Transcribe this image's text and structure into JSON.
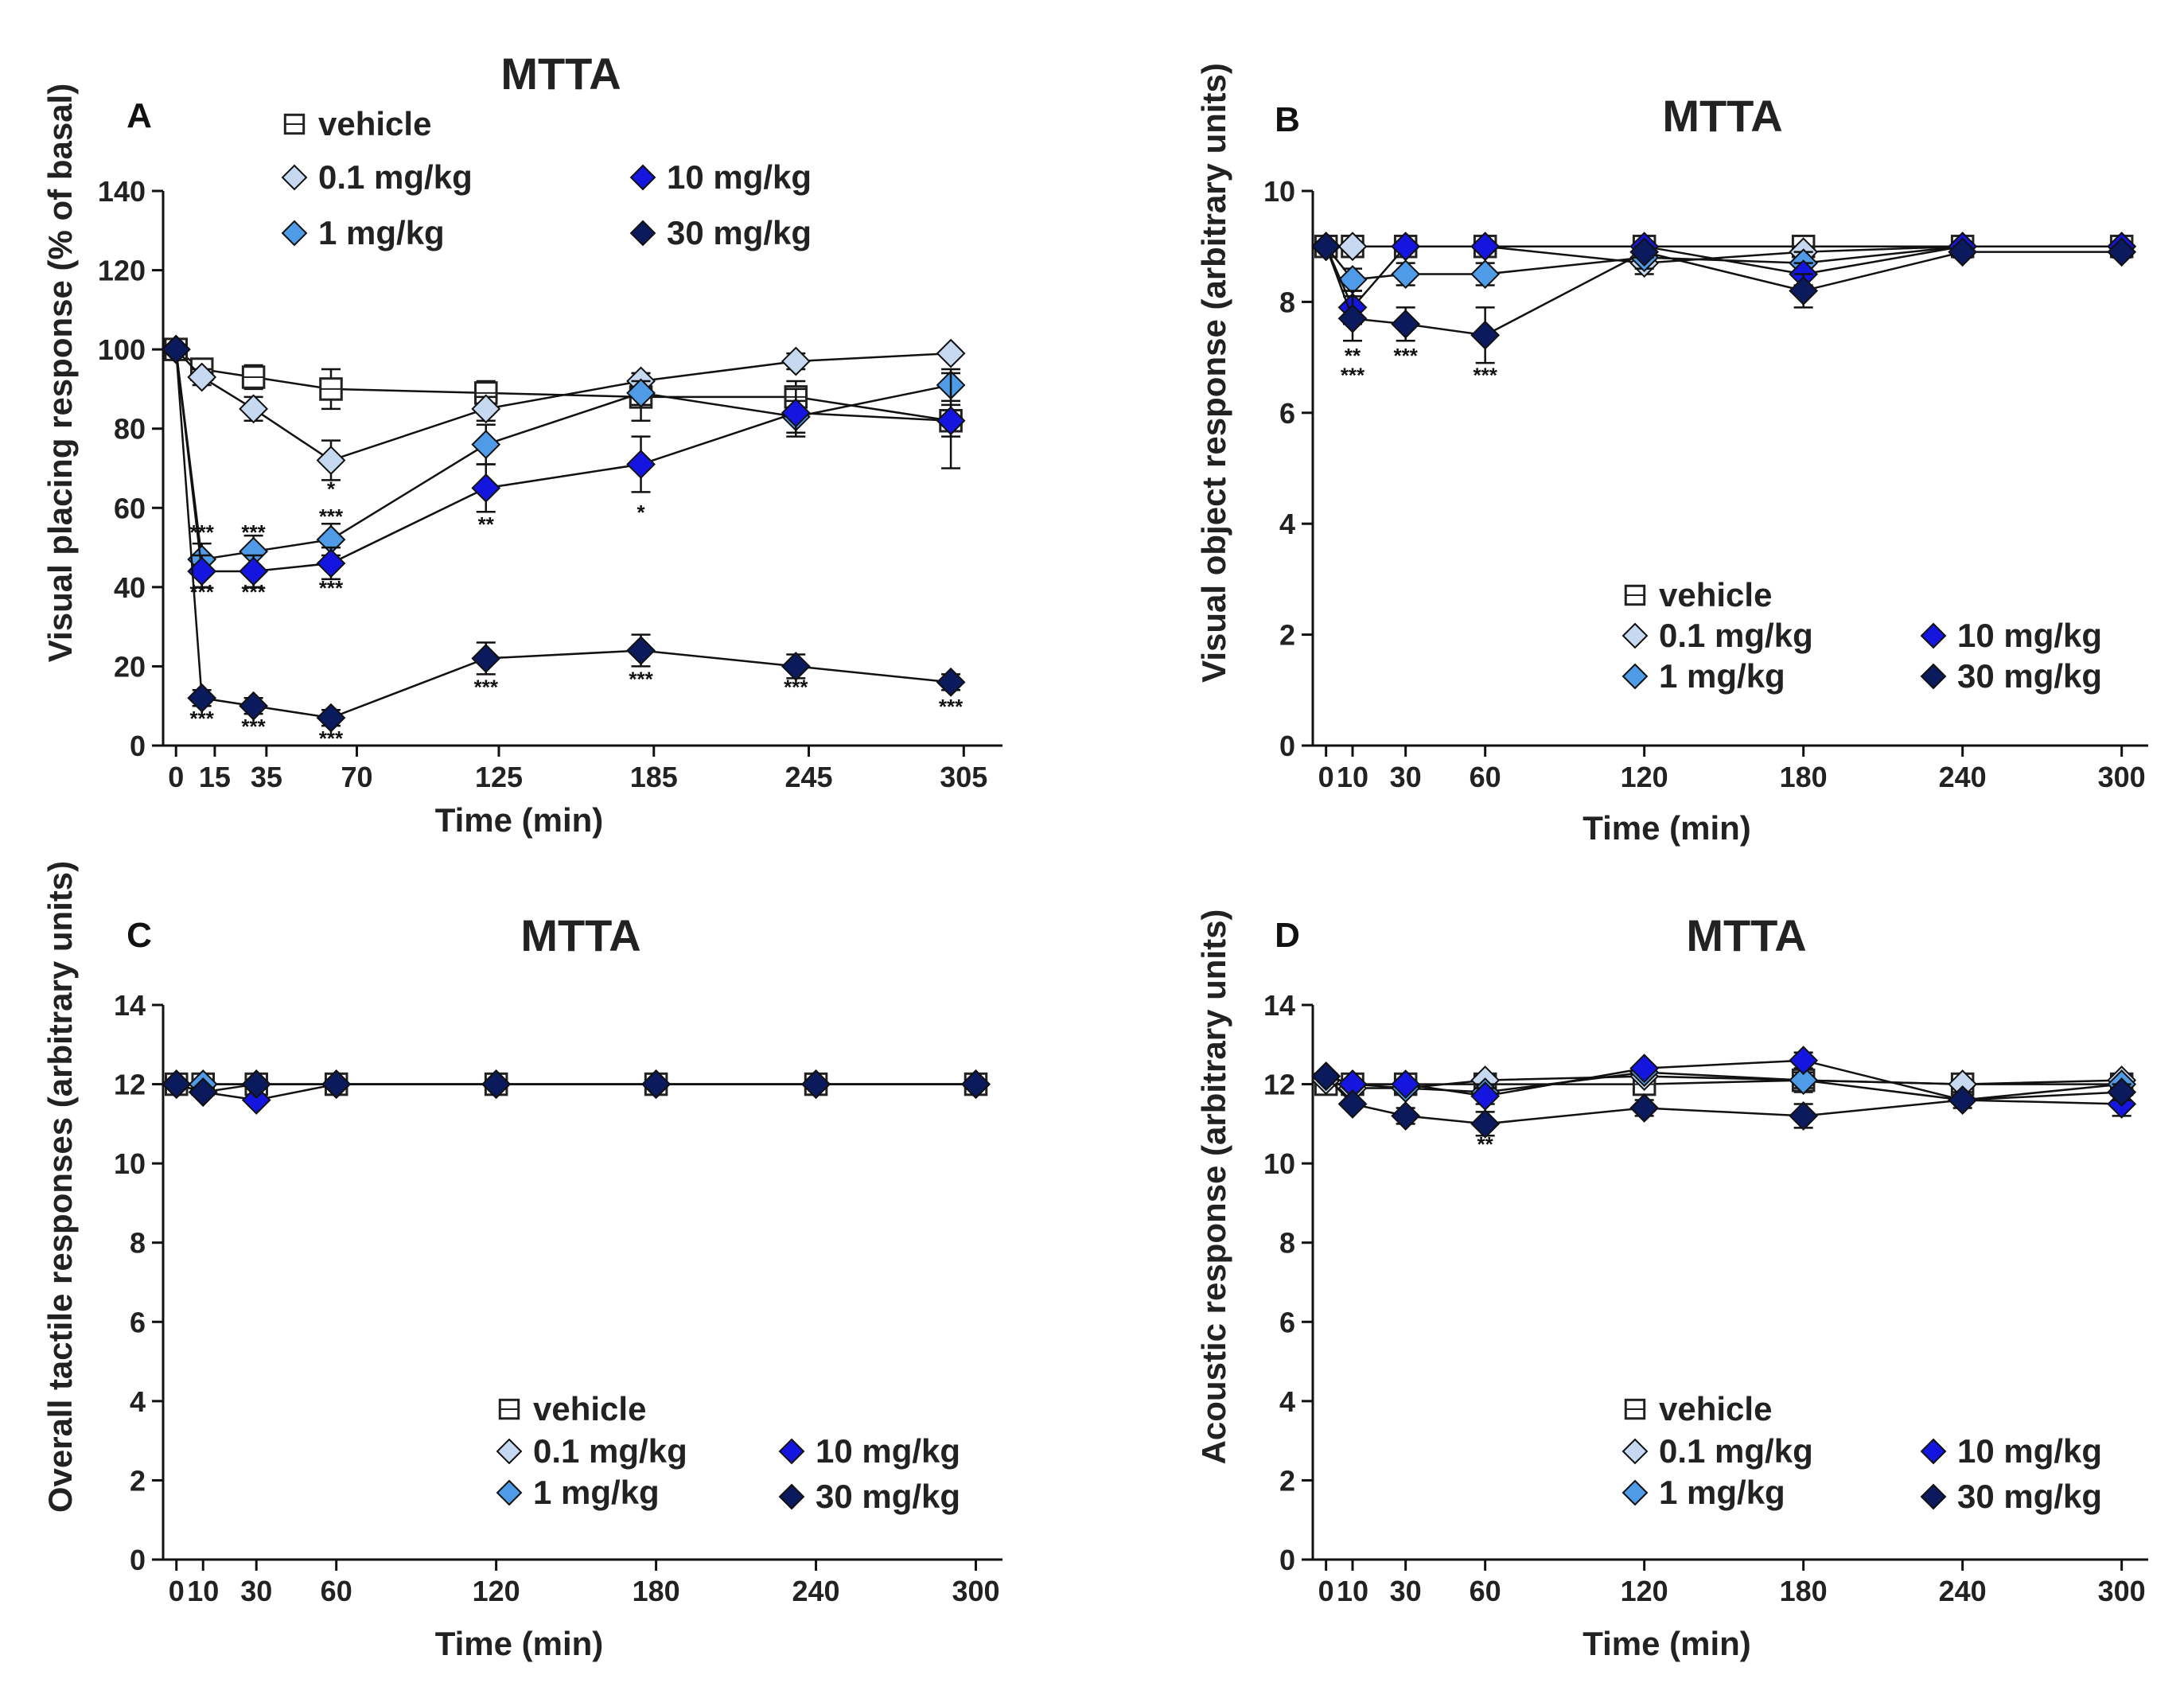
{
  "series_styles": {
    "vehicle": {
      "marker": "square",
      "fill": "#ffffff"
    },
    "0.1 mg/kg": {
      "marker": "diamond",
      "fill": "#c6d9f1"
    },
    "1 mg/kg": {
      "marker": "diamond",
      "fill": "#4f9be8"
    },
    "10 mg/kg": {
      "marker": "diamond",
      "fill": "#1515e0"
    },
    "30 mg/kg": {
      "marker": "diamond",
      "fill": "#0a1a5c"
    }
  },
  "chart_data": [
    {
      "panel": "A",
      "type": "line",
      "title": "MTTA",
      "xlabel": "Time (min)",
      "ylabel": "Visual placing response (%  of basal)",
      "xlim": [
        -5,
        320
      ],
      "ylim": [
        0,
        140
      ],
      "xticks": [
        0,
        15,
        35,
        70,
        125,
        185,
        245,
        305
      ],
      "yticks": [
        0,
        20,
        40,
        60,
        80,
        100,
        120,
        140
      ],
      "legend": [
        "vehicle",
        "0.1 mg/kg",
        "1 mg/kg",
        "10 mg/kg",
        "30 mg/kg"
      ],
      "x": [
        0,
        10,
        30,
        60,
        120,
        180,
        240,
        300
      ],
      "series": [
        {
          "name": "vehicle",
          "values": [
            100,
            95,
            93,
            90,
            89,
            88,
            88,
            82
          ],
          "errors": [
            0,
            2,
            3,
            5,
            3,
            6,
            4,
            4
          ]
        },
        {
          "name": "0.1 mg/kg",
          "values": [
            100,
            93,
            85,
            72,
            85,
            92,
            97,
            99
          ],
          "errors": [
            0,
            2,
            3,
            5,
            3,
            2,
            2,
            1
          ]
        },
        {
          "name": "1 mg/kg",
          "values": [
            100,
            47,
            49,
            52,
            76,
            89,
            83,
            91
          ],
          "errors": [
            0,
            4,
            4,
            4,
            5,
            3,
            4,
            4
          ]
        },
        {
          "name": "10 mg/kg",
          "values": [
            100,
            44,
            44,
            46,
            65,
            71,
            84,
            82
          ],
          "errors": [
            0,
            4,
            4,
            4,
            6,
            7,
            6,
            12
          ]
        },
        {
          "name": "30 mg/kg",
          "values": [
            100,
            12,
            10,
            7,
            22,
            24,
            20,
            16
          ],
          "errors": [
            0,
            2,
            2,
            2,
            4,
            4,
            3,
            2
          ]
        }
      ],
      "annotations": [
        {
          "x": 60,
          "y": 63,
          "text": "*"
        },
        {
          "x": 120,
          "y": 54,
          "text": "**"
        },
        {
          "x": 180,
          "y": 57,
          "text": "*"
        },
        {
          "x": 10,
          "y": 52,
          "text": "***"
        },
        {
          "x": 30,
          "y": 52,
          "text": "***"
        },
        {
          "x": 60,
          "y": 56,
          "text": "***"
        },
        {
          "x": 10,
          "y": 37,
          "text": "***"
        },
        {
          "x": 30,
          "y": 37,
          "text": "***"
        },
        {
          "x": 60,
          "y": 38,
          "text": "***"
        },
        {
          "x": 10,
          "y": 5,
          "text": "***"
        },
        {
          "x": 30,
          "y": 3,
          "text": "***"
        },
        {
          "x": 60,
          "y": 0,
          "text": "***"
        },
        {
          "x": 120,
          "y": 13,
          "text": "***"
        },
        {
          "x": 180,
          "y": 15,
          "text": "***"
        },
        {
          "x": 240,
          "y": 13,
          "text": "***"
        },
        {
          "x": 300,
          "y": 8,
          "text": "***"
        }
      ]
    },
    {
      "panel": "B",
      "type": "line",
      "title": "MTTA",
      "xlabel": "Time (min)",
      "ylabel": "Visual object response (arbitrary units)",
      "xlim": [
        -5,
        310
      ],
      "ylim": [
        0,
        10
      ],
      "xticks": [
        0,
        10,
        30,
        60,
        120,
        180,
        240,
        300
      ],
      "yticks": [
        0,
        2,
        4,
        6,
        8,
        10
      ],
      "legend": [
        "vehicle",
        "0.1 mg/kg",
        "1 mg/kg",
        "10 mg/kg",
        "30 mg/kg"
      ],
      "x": [
        0,
        10,
        30,
        60,
        120,
        180,
        240,
        300
      ],
      "series": [
        {
          "name": "vehicle",
          "values": [
            9,
            9,
            9,
            9,
            9,
            9,
            9,
            9
          ],
          "errors": [
            0,
            0,
            0,
            0,
            0,
            0,
            0,
            0
          ]
        },
        {
          "name": "0.1 mg/kg",
          "values": [
            9,
            9,
            9,
            9,
            8.7,
            8.9,
            9,
            9
          ],
          "errors": [
            0,
            0,
            0,
            0,
            0.2,
            0.1,
            0,
            0
          ]
        },
        {
          "name": "1 mg/kg",
          "values": [
            9,
            8.4,
            8.5,
            8.5,
            8.8,
            8.7,
            9,
            9
          ],
          "errors": [
            0,
            0.2,
            0.2,
            0.2,
            0.2,
            0.2,
            0,
            0
          ]
        },
        {
          "name": "10 mg/kg",
          "values": [
            9,
            7.9,
            9,
            9,
            9,
            8.5,
            9,
            9
          ],
          "errors": [
            0,
            0.3,
            0,
            0,
            0,
            0.2,
            0,
            0
          ]
        },
        {
          "name": "30 mg/kg",
          "values": [
            9,
            7.7,
            7.6,
            7.4,
            8.9,
            8.2,
            8.9,
            8.9
          ],
          "errors": [
            0,
            0.4,
            0.3,
            0.5,
            0.1,
            0.3,
            0.1,
            0.1
          ]
        }
      ],
      "annotations": [
        {
          "x": 10,
          "y": 6.9,
          "text": "**"
        },
        {
          "x": 10,
          "y": 6.55,
          "text": "***"
        },
        {
          "x": 30,
          "y": 6.9,
          "text": "***"
        },
        {
          "x": 60,
          "y": 6.55,
          "text": "***"
        }
      ]
    },
    {
      "panel": "C",
      "type": "line",
      "title": "MTTA",
      "xlabel": "Time (min)",
      "ylabel": "Overall tactile responses (arbitrary units)",
      "xlim": [
        -5,
        310
      ],
      "ylim": [
        0,
        14
      ],
      "xticks": [
        0,
        10,
        30,
        60,
        120,
        180,
        240,
        300
      ],
      "yticks": [
        0,
        2,
        4,
        6,
        8,
        10,
        12,
        14
      ],
      "legend": [
        "vehicle",
        "0.1 mg/kg",
        "1 mg/kg",
        "10 mg/kg",
        "30 mg/kg"
      ],
      "x": [
        0,
        10,
        30,
        60,
        120,
        180,
        240,
        300
      ],
      "series": [
        {
          "name": "vehicle",
          "values": [
            12,
            12,
            12,
            12,
            12,
            12,
            12,
            12
          ],
          "errors": [
            0,
            0,
            0,
            0,
            0,
            0,
            0,
            0
          ]
        },
        {
          "name": "0.1 mg/kg",
          "values": [
            12,
            12,
            12,
            12,
            12,
            12,
            12,
            12
          ],
          "errors": [
            0,
            0,
            0,
            0,
            0,
            0,
            0,
            0
          ]
        },
        {
          "name": "1 mg/kg",
          "values": [
            12,
            12,
            12,
            12,
            12,
            12,
            12,
            12
          ],
          "errors": [
            0,
            0,
            0,
            0,
            0,
            0,
            0,
            0
          ]
        },
        {
          "name": "10 mg/kg",
          "values": [
            12,
            11.8,
            11.6,
            12,
            12,
            12,
            12,
            12
          ],
          "errors": [
            0,
            0,
            0,
            0,
            0,
            0,
            0,
            0
          ]
        },
        {
          "name": "30 mg/kg",
          "values": [
            12,
            11.8,
            12,
            12,
            12,
            12,
            12,
            12
          ],
          "errors": [
            0,
            0,
            0,
            0,
            0,
            0,
            0,
            0
          ]
        }
      ],
      "annotations": []
    },
    {
      "panel": "D",
      "type": "line",
      "title": "MTTA",
      "xlabel": "Time (min)",
      "ylabel": "Acoustic response (arbitrary units)",
      "xlim": [
        -5,
        310
      ],
      "ylim": [
        0,
        14
      ],
      "xticks": [
        0,
        10,
        30,
        60,
        120,
        180,
        240,
        300
      ],
      "yticks": [
        0,
        2,
        4,
        6,
        8,
        10,
        12,
        14
      ],
      "legend": [
        "vehicle",
        "0.1 mg/kg",
        "1 mg/kg",
        "10 mg/kg",
        "30 mg/kg"
      ],
      "x": [
        0,
        10,
        30,
        60,
        120,
        180,
        240,
        300
      ],
      "series": [
        {
          "name": "vehicle",
          "values": [
            12,
            12,
            12,
            12,
            12,
            12.1,
            12,
            12
          ],
          "errors": [
            0,
            0,
            0,
            0.1,
            0.1,
            0.3,
            0,
            0
          ]
        },
        {
          "name": "0.1 mg/kg",
          "values": [
            12.1,
            11.9,
            11.9,
            12.1,
            12.2,
            12.1,
            12,
            12.1
          ],
          "errors": [
            0,
            0,
            0,
            0.1,
            0.1,
            0.1,
            0,
            0
          ]
        },
        {
          "name": "1 mg/kg",
          "values": [
            12.2,
            12,
            11.9,
            11.8,
            12.3,
            12.1,
            11.6,
            12
          ],
          "errors": [
            0,
            0.1,
            0.1,
            0.2,
            0.1,
            0.2,
            0.1,
            0.1
          ]
        },
        {
          "name": "10 mg/kg",
          "values": [
            12.2,
            12,
            12,
            11.7,
            12.4,
            12.6,
            11.6,
            11.5
          ],
          "errors": [
            0,
            0.1,
            0.1,
            0.2,
            0.1,
            0.2,
            0.2,
            0.3
          ]
        },
        {
          "name": "30 mg/kg",
          "values": [
            12.2,
            11.5,
            11.2,
            11,
            11.4,
            11.2,
            11.6,
            11.8
          ],
          "errors": [
            0,
            0.1,
            0.2,
            0.3,
            0.2,
            0.3,
            0.1,
            0.2
          ]
        }
      ],
      "annotations": [
        {
          "x": 60,
          "y": 10.3,
          "text": "**"
        }
      ]
    }
  ]
}
